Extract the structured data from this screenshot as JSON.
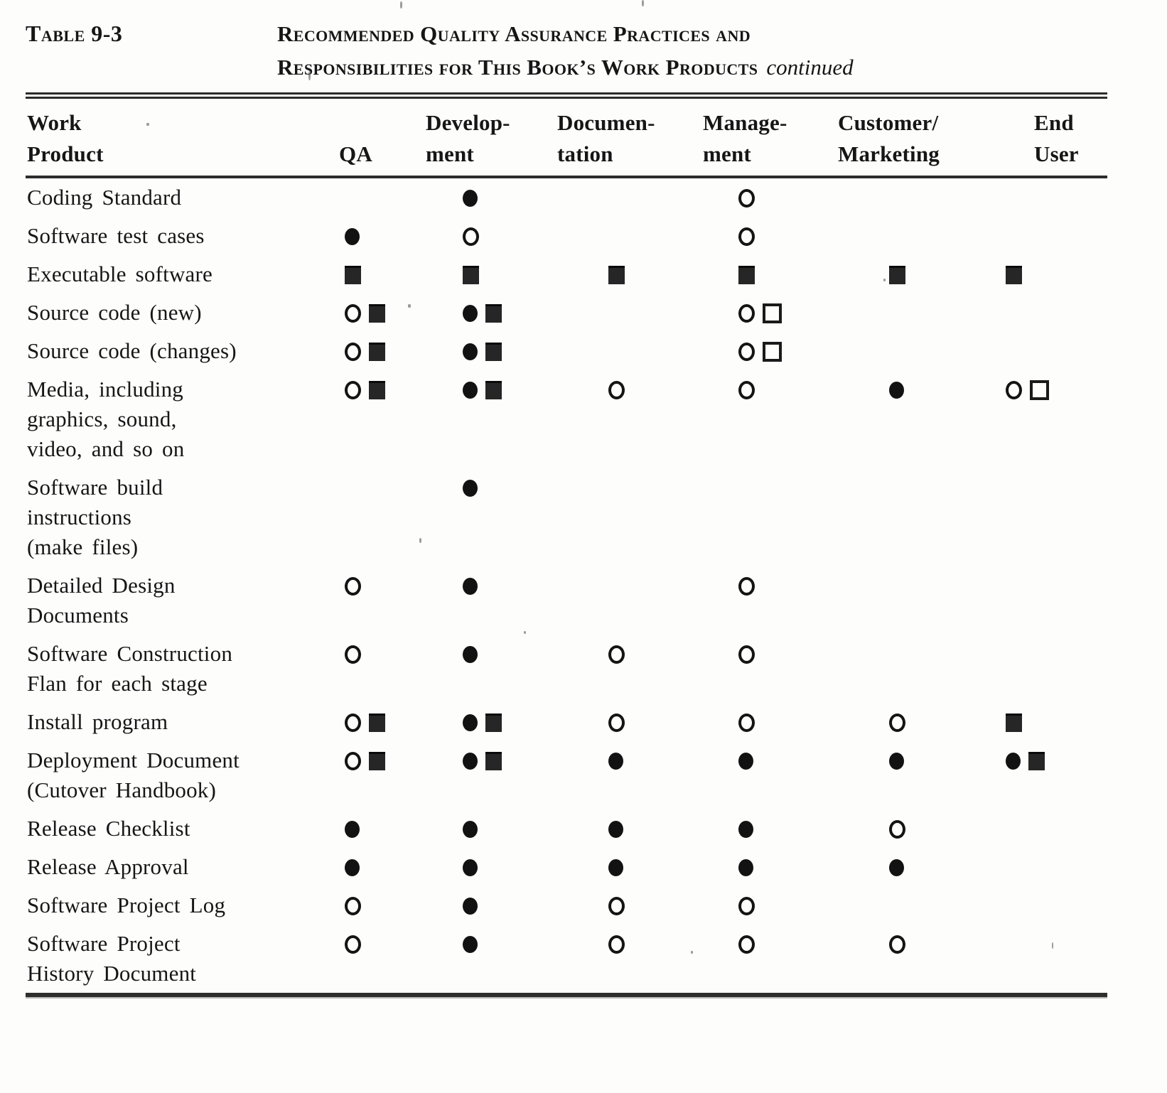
{
  "page": {
    "label": "Table 9-3",
    "title_line1": "Recommended Quality Assurance Practices and",
    "title_line2": "Responsibilities for This Book’s Work Products",
    "title_continued": "continued"
  },
  "table": {
    "columns": [
      {
        "key": "work-product",
        "line1": "Work",
        "line2": "Product"
      },
      {
        "key": "qa",
        "line1": "",
        "line2": "QA"
      },
      {
        "key": "development",
        "line1": "Develop-",
        "line2": "ment"
      },
      {
        "key": "documentation",
        "line1": "Documen-",
        "line2": "tation"
      },
      {
        "key": "management",
        "line1": "Manage-",
        "line2": "ment"
      },
      {
        "key": "customer-marketing",
        "line1": "Customer/",
        "line2": "Marketing"
      },
      {
        "key": "end-user",
        "line1": "End",
        "line2": "User"
      }
    ],
    "symbol_legend": {
      "fc": "filled-circle",
      "oc": "open-circle",
      "fs": "filled-square",
      "os": "open-square"
    },
    "rows": [
      {
        "product_lines": [
          "Coding Standard"
        ],
        "cells": [
          [],
          [
            "fc"
          ],
          [],
          [
            "oc"
          ],
          [],
          []
        ]
      },
      {
        "product_lines": [
          "Software test cases"
        ],
        "cells": [
          [
            "fc"
          ],
          [
            "oc"
          ],
          [],
          [
            "oc"
          ],
          [],
          []
        ]
      },
      {
        "product_lines": [
          "Executable software"
        ],
        "cells": [
          [
            "fs"
          ],
          [
            "fs"
          ],
          [
            "fs"
          ],
          [
            "fs"
          ],
          [
            "fs"
          ],
          [
            "fs"
          ]
        ]
      },
      {
        "product_lines": [
          "Source code (new)"
        ],
        "cells": [
          [
            "oc",
            "fs"
          ],
          [
            "fc",
            "fs"
          ],
          [],
          [
            "oc",
            "os"
          ],
          [],
          []
        ]
      },
      {
        "product_lines": [
          "Source code (changes)"
        ],
        "cells": [
          [
            "oc",
            "fs"
          ],
          [
            "fc",
            "fs"
          ],
          [],
          [
            "oc",
            "os"
          ],
          [],
          []
        ]
      },
      {
        "product_lines": [
          "Media, including",
          "graphics, sound,",
          "video, and so on"
        ],
        "cells": [
          [
            "oc",
            "fs"
          ],
          [
            "fc",
            "fs"
          ],
          [
            "oc"
          ],
          [
            "oc"
          ],
          [
            "fc"
          ],
          [
            "oc",
            "os"
          ]
        ]
      },
      {
        "product_lines": [
          "Software build",
          "instructions",
          "(make files)"
        ],
        "cells": [
          [],
          [
            "fc"
          ],
          [],
          [],
          [],
          []
        ]
      },
      {
        "product_lines": [
          "Detailed Design",
          "Documents"
        ],
        "cells": [
          [
            "oc"
          ],
          [
            "fc"
          ],
          [],
          [
            "oc"
          ],
          [],
          []
        ]
      },
      {
        "product_lines": [
          "Software Construction",
          "Flan for each stage"
        ],
        "cells": [
          [
            "oc"
          ],
          [
            "fc"
          ],
          [
            "oc"
          ],
          [
            "oc"
          ],
          [],
          []
        ]
      },
      {
        "product_lines": [
          "Install program"
        ],
        "cells": [
          [
            "oc",
            "fs"
          ],
          [
            "fc",
            "fs"
          ],
          [
            "oc"
          ],
          [
            "oc"
          ],
          [
            "oc"
          ],
          [
            "fs"
          ]
        ]
      },
      {
        "product_lines": [
          "Deployment Document",
          "(Cutover Handbook)"
        ],
        "cells": [
          [
            "oc",
            "fs"
          ],
          [
            "fc",
            "fs"
          ],
          [
            "fc"
          ],
          [
            "fc"
          ],
          [
            "fc"
          ],
          [
            "fc",
            "fs"
          ]
        ]
      },
      {
        "product_lines": [
          "Release Checklist"
        ],
        "cells": [
          [
            "fc"
          ],
          [
            "fc"
          ],
          [
            "fc"
          ],
          [
            "fc"
          ],
          [
            "oc"
          ],
          []
        ]
      },
      {
        "product_lines": [
          "Release Approval"
        ],
        "cells": [
          [
            "fc"
          ],
          [
            "fc"
          ],
          [
            "fc"
          ],
          [
            "fc"
          ],
          [
            "fc"
          ],
          []
        ]
      },
      {
        "product_lines": [
          "Software Project Log"
        ],
        "cells": [
          [
            "oc"
          ],
          [
            "fc"
          ],
          [
            "oc"
          ],
          [
            "oc"
          ],
          [],
          []
        ]
      },
      {
        "product_lines": [
          "Software Project",
          "History Document"
        ],
        "cells": [
          [
            "oc"
          ],
          [
            "fc"
          ],
          [
            "oc"
          ],
          [
            "oc"
          ],
          [
            "oc"
          ],
          []
        ]
      }
    ]
  }
}
